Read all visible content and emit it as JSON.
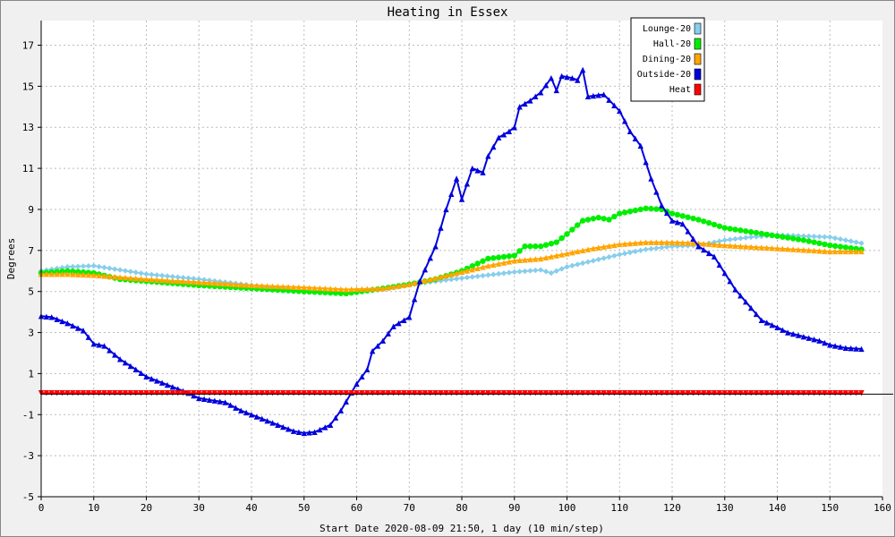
{
  "chart_data": {
    "type": "line",
    "title": "Heating in Essex",
    "xlabel": "Start Date 2020-08-09 21:50, 1 day (10 min/step)",
    "ylabel": "Degrees",
    "xlim": [
      0,
      160
    ],
    "ylim": [
      -5,
      18.2
    ],
    "x_ticks": [
      0,
      10,
      20,
      30,
      40,
      50,
      60,
      70,
      80,
      90,
      100,
      110,
      120,
      130,
      140,
      150,
      160
    ],
    "y_ticks": [
      -5,
      -3,
      -1,
      1,
      3,
      5,
      7,
      9,
      11,
      13,
      15,
      17
    ],
    "grid": true,
    "legend_position": "top-right",
    "series": [
      {
        "name": "Lounge-20",
        "color": "#87ceeb",
        "marker": "diamond",
        "points": [
          [
            0,
            6.0
          ],
          [
            5,
            6.2
          ],
          [
            10,
            6.25
          ],
          [
            15,
            6.05
          ],
          [
            20,
            5.85
          ],
          [
            30,
            5.6
          ],
          [
            40,
            5.3
          ],
          [
            50,
            5.05
          ],
          [
            58,
            4.95
          ],
          [
            65,
            5.1
          ],
          [
            72,
            5.4
          ],
          [
            80,
            5.65
          ],
          [
            90,
            5.95
          ],
          [
            95,
            6.05
          ],
          [
            97,
            5.9
          ],
          [
            100,
            6.2
          ],
          [
            105,
            6.5
          ],
          [
            110,
            6.8
          ],
          [
            115,
            7.05
          ],
          [
            120,
            7.2
          ],
          [
            125,
            7.25
          ],
          [
            130,
            7.5
          ],
          [
            135,
            7.65
          ],
          [
            140,
            7.75
          ],
          [
            145,
            7.7
          ],
          [
            150,
            7.65
          ],
          [
            156,
            7.35
          ]
        ]
      },
      {
        "name": "Hall-20",
        "color": "#00ee00",
        "marker": "circle",
        "points": [
          [
            0,
            5.9
          ],
          [
            5,
            6.0
          ],
          [
            10,
            5.9
          ],
          [
            15,
            5.6
          ],
          [
            20,
            5.5
          ],
          [
            30,
            5.3
          ],
          [
            40,
            5.15
          ],
          [
            50,
            5.0
          ],
          [
            58,
            4.9
          ],
          [
            65,
            5.15
          ],
          [
            70,
            5.35
          ],
          [
            75,
            5.6
          ],
          [
            80,
            6.0
          ],
          [
            85,
            6.6
          ],
          [
            90,
            6.75
          ],
          [
            92,
            7.2
          ],
          [
            95,
            7.2
          ],
          [
            98,
            7.4
          ],
          [
            100,
            7.8
          ],
          [
            103,
            8.45
          ],
          [
            106,
            8.6
          ],
          [
            108,
            8.5
          ],
          [
            110,
            8.8
          ],
          [
            115,
            9.05
          ],
          [
            118,
            9.0
          ],
          [
            120,
            8.8
          ],
          [
            125,
            8.5
          ],
          [
            130,
            8.1
          ],
          [
            135,
            7.9
          ],
          [
            140,
            7.7
          ],
          [
            145,
            7.5
          ],
          [
            150,
            7.25
          ],
          [
            156,
            7.05
          ]
        ]
      },
      {
        "name": "Dining-20",
        "color": "#ffa500",
        "marker": "triangle",
        "points": [
          [
            0,
            5.85
          ],
          [
            5,
            5.85
          ],
          [
            10,
            5.8
          ],
          [
            15,
            5.7
          ],
          [
            20,
            5.6
          ],
          [
            30,
            5.45
          ],
          [
            40,
            5.3
          ],
          [
            50,
            5.2
          ],
          [
            58,
            5.1
          ],
          [
            65,
            5.15
          ],
          [
            70,
            5.35
          ],
          [
            80,
            5.95
          ],
          [
            85,
            6.25
          ],
          [
            90,
            6.5
          ],
          [
            95,
            6.6
          ],
          [
            100,
            6.85
          ],
          [
            105,
            7.1
          ],
          [
            110,
            7.3
          ],
          [
            115,
            7.4
          ],
          [
            120,
            7.4
          ],
          [
            125,
            7.35
          ],
          [
            130,
            7.25
          ],
          [
            140,
            7.1
          ],
          [
            150,
            6.95
          ],
          [
            156,
            6.95
          ]
        ]
      },
      {
        "name": "Outside-20",
        "color": "#0000dd",
        "marker": "triangle",
        "points": [
          [
            0,
            3.8
          ],
          [
            2,
            3.75
          ],
          [
            5,
            3.45
          ],
          [
            8,
            3.1
          ],
          [
            10,
            2.45
          ],
          [
            12,
            2.35
          ],
          [
            15,
            1.7
          ],
          [
            18,
            1.2
          ],
          [
            20,
            0.85
          ],
          [
            25,
            0.35
          ],
          [
            28,
            0.05
          ],
          [
            30,
            -0.2
          ],
          [
            35,
            -0.4
          ],
          [
            38,
            -0.8
          ],
          [
            40,
            -1.0
          ],
          [
            45,
            -1.5
          ],
          [
            48,
            -1.8
          ],
          [
            50,
            -1.9
          ],
          [
            52,
            -1.85
          ],
          [
            55,
            -1.5
          ],
          [
            57,
            -0.8
          ],
          [
            60,
            0.5
          ],
          [
            62,
            1.2
          ],
          [
            63,
            2.1
          ],
          [
            65,
            2.6
          ],
          [
            67,
            3.3
          ],
          [
            70,
            3.75
          ],
          [
            72,
            5.5
          ],
          [
            75,
            7.2
          ],
          [
            77,
            9.0
          ],
          [
            79,
            10.5
          ],
          [
            80,
            9.5
          ],
          [
            82,
            11.0
          ],
          [
            84,
            10.8
          ],
          [
            85,
            11.6
          ],
          [
            87,
            12.5
          ],
          [
            89,
            12.8
          ],
          [
            90,
            13.0
          ],
          [
            91,
            14.0
          ],
          [
            93,
            14.3
          ],
          [
            95,
            14.7
          ],
          [
            97,
            15.4
          ],
          [
            98,
            14.8
          ],
          [
            99,
            15.5
          ],
          [
            101,
            15.4
          ],
          [
            102,
            15.3
          ],
          [
            103,
            15.8
          ],
          [
            104,
            14.5
          ],
          [
            107,
            14.6
          ],
          [
            110,
            13.8
          ],
          [
            112,
            12.8
          ],
          [
            114,
            12.1
          ],
          [
            116,
            10.5
          ],
          [
            118,
            9.2
          ],
          [
            120,
            8.45
          ],
          [
            122,
            8.3
          ],
          [
            125,
            7.2
          ],
          [
            128,
            6.7
          ],
          [
            130,
            5.9
          ],
          [
            132,
            5.1
          ],
          [
            135,
            4.2
          ],
          [
            137,
            3.6
          ],
          [
            140,
            3.25
          ],
          [
            142,
            3.0
          ],
          [
            145,
            2.8
          ],
          [
            148,
            2.6
          ],
          [
            150,
            2.4
          ],
          [
            153,
            2.25
          ],
          [
            156,
            2.2
          ]
        ]
      },
      {
        "name": "Heat",
        "color": "#ff0000",
        "marker": "triangle-down",
        "points": [
          [
            0,
            0.05
          ],
          [
            156,
            0.05
          ]
        ]
      }
    ]
  }
}
